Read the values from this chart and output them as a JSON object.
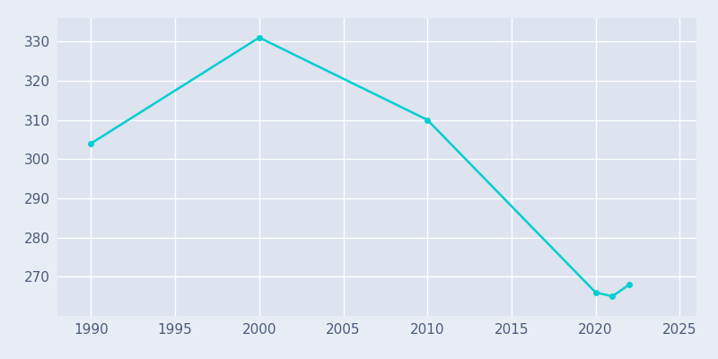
{
  "years": [
    1990,
    2000,
    2010,
    2020,
    2021,
    2022
  ],
  "population": [
    304,
    331,
    310,
    266,
    265,
    268
  ],
  "line_color": "#00CED1",
  "bg_color": "#E8EDF5",
  "plot_bg_color": "#DDE3EF",
  "grid_color": "#FFFFFF",
  "xlabel": "",
  "ylabel": "",
  "xlim": [
    1988,
    2026
  ],
  "ylim": [
    260,
    336
  ],
  "xticks": [
    1990,
    1995,
    2000,
    2005,
    2010,
    2015,
    2020,
    2025
  ],
  "yticks": [
    270,
    280,
    290,
    300,
    310,
    320,
    330
  ],
  "tick_color": "#4B5A7A",
  "tick_fontsize": 11,
  "line_width": 1.8,
  "marker": "o",
  "marker_size": 4,
  "figsize": [
    8.0,
    4.0
  ],
  "dpi": 100
}
